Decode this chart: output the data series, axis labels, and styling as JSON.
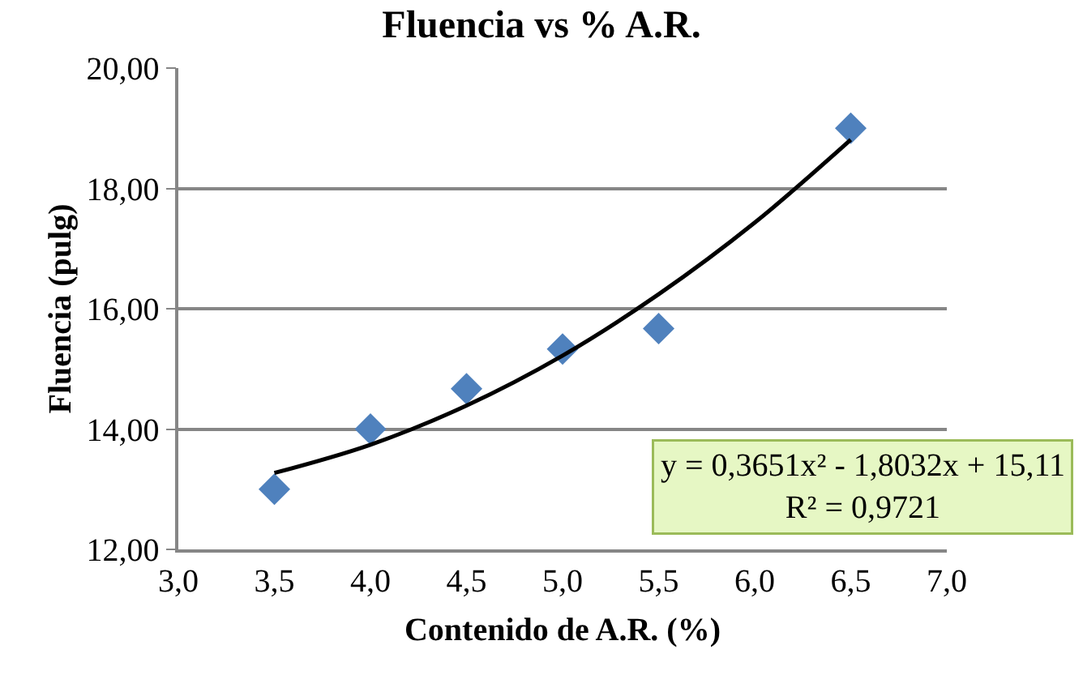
{
  "chart_data": {
    "type": "scatter",
    "title": "Fluencia vs % A.R.",
    "xlabel": "Contenido de A.R. (%)",
    "ylabel": "Fluencia (pulg)",
    "x": [
      3.5,
      4.0,
      4.5,
      5.0,
      5.5,
      6.5
    ],
    "series": [
      {
        "color": "#4f81bd",
        "marker": "diamond",
        "values": [
          13.0,
          14.0,
          14.67,
          15.33,
          15.67,
          19.0
        ]
      },
      {
        "type": "line",
        "color": "#000000",
        "marker": "none",
        "x": [
          3.5,
          4.0,
          4.5,
          5.0,
          5.5,
          6.0,
          6.5
        ],
        "values": [
          13.27,
          13.74,
          14.39,
          15.22,
          16.24,
          17.43,
          18.81
        ]
      }
    ],
    "xlim": [
      3.0,
      7.0
    ],
    "xticks": [
      {
        "value": 3,
        "label": "3,0"
      },
      {
        "value": 3.5,
        "label": "3,5"
      },
      {
        "value": 4,
        "label": "4,0"
      },
      {
        "value": 4.5,
        "label": "4,5"
      },
      {
        "value": 5,
        "label": "5,0"
      },
      {
        "value": 5.5,
        "label": "5,5"
      },
      {
        "value": 6,
        "label": "6,0"
      },
      {
        "value": 6.5,
        "label": "6,5"
      },
      {
        "value": 7,
        "label": "7,0"
      }
    ],
    "ylim": [
      12,
      20
    ],
    "yticks": [
      {
        "value": 12,
        "label": "12,00"
      },
      {
        "value": 14,
        "label": "14,00"
      },
      {
        "value": 16,
        "label": "16,00"
      },
      {
        "value": 18,
        "label": "18,00"
      },
      {
        "value": 20,
        "label": "20,00"
      }
    ],
    "grid": "y",
    "annotations": [
      "y = 0,3651x² - 1,8032x + 15,11\nR² = 0,9721"
    ]
  }
}
